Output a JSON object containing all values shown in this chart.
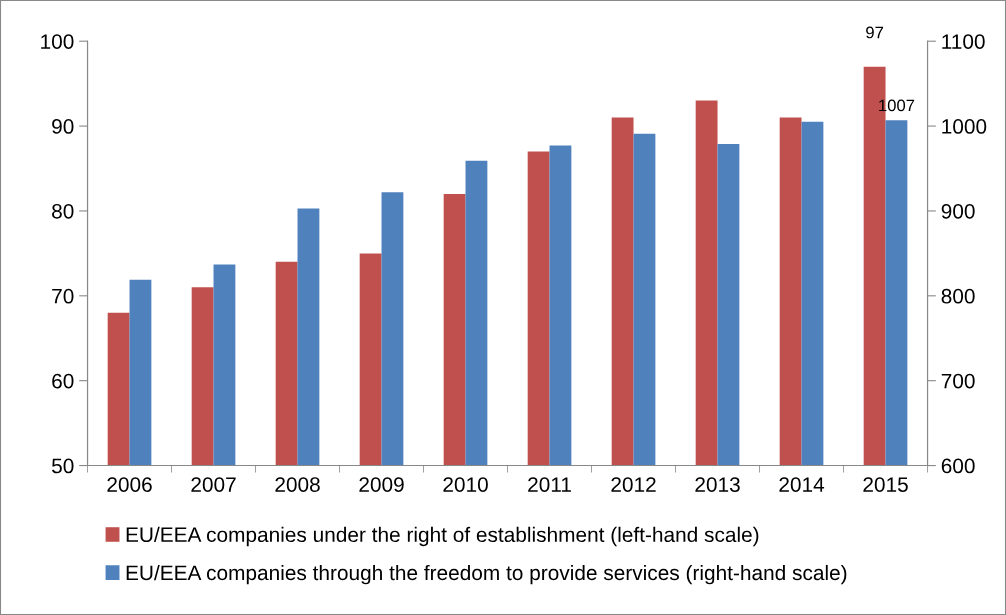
{
  "chart_data": {
    "type": "bar",
    "categories": [
      "2006",
      "2007",
      "2008",
      "2009",
      "2010",
      "2011",
      "2012",
      "2013",
      "2014",
      "2015"
    ],
    "series": [
      {
        "name": "EU/EEA companies under the right of establishment (left-hand scale)",
        "color": "#c0504d",
        "values": [
          68,
          71,
          74,
          75,
          82,
          87,
          91,
          93,
          91,
          97
        ],
        "value_labels": [
          null,
          null,
          null,
          null,
          null,
          null,
          null,
          null,
          null,
          "97"
        ]
      },
      {
        "name": "EU/EEA companies through the freedom to provide services (right-hand scale)",
        "color": "#4f81bd",
        "axis": "y2",
        "values": [
          819,
          837,
          903,
          922,
          959,
          977,
          991,
          979,
          1005,
          1007
        ],
        "value_labels": [
          null,
          null,
          null,
          null,
          null,
          null,
          null,
          null,
          null,
          "1007"
        ]
      }
    ],
    "ylim": [
      50,
      100
    ],
    "yticks": [
      50,
      60,
      70,
      80,
      90,
      100
    ],
    "y2lim": [
      600,
      1100
    ],
    "y2ticks": [
      600,
      700,
      800,
      900,
      1000,
      1100
    ],
    "grid": false,
    "legend": "bottom"
  }
}
